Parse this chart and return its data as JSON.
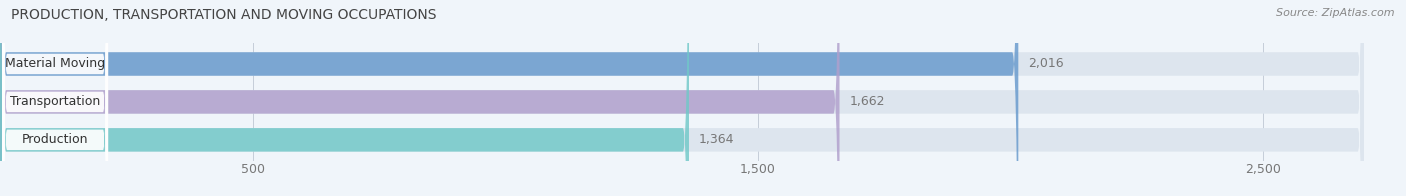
{
  "title": "PRODUCTION, TRANSPORTATION AND MOVING OCCUPATIONS",
  "source": "Source: ZipAtlas.com",
  "categories": [
    "Material Moving",
    "Transportation",
    "Production"
  ],
  "values": [
    2016,
    1662,
    1364
  ],
  "bar_colors": [
    "#6699cc",
    "#b09fcc",
    "#70c8c8"
  ],
  "xlim": [
    0,
    2700
  ],
  "xticks": [
    500,
    1500,
    2500
  ],
  "bg_color": "#f0f5fa",
  "bar_bg_color": "#dde5ee",
  "title_fontsize": 10,
  "source_fontsize": 8,
  "tick_fontsize": 9,
  "bar_label_fontsize": 9,
  "category_fontsize": 9
}
